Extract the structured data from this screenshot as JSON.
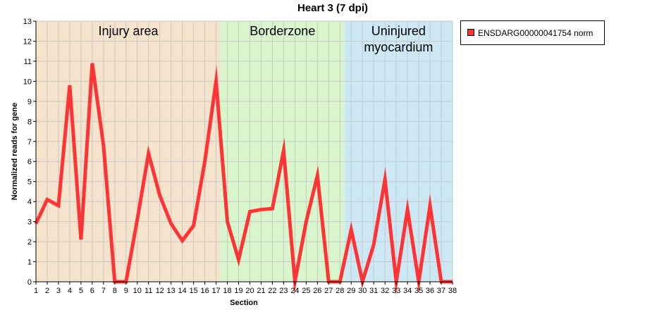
{
  "chart_data": {
    "type": "line",
    "title": "Heart 3 (7 dpi)",
    "xlabel": "Section",
    "ylabel": "Normalized reads for gene",
    "xlim": [
      1,
      38
    ],
    "ylim": [
      0,
      13
    ],
    "x_ticks": [
      1,
      2,
      3,
      4,
      5,
      6,
      7,
      8,
      9,
      10,
      11,
      12,
      13,
      14,
      15,
      16,
      17,
      18,
      19,
      20,
      21,
      22,
      23,
      24,
      25,
      26,
      27,
      28,
      29,
      30,
      31,
      32,
      33,
      34,
      35,
      36,
      37,
      38
    ],
    "y_ticks": [
      0,
      1,
      2,
      3,
      4,
      5,
      6,
      7,
      8,
      9,
      10,
      11,
      12,
      13
    ],
    "grid": true,
    "legend_position": "right",
    "regions": [
      {
        "label_lines": [
          "Injury area"
        ],
        "from": 1,
        "to": 17.4,
        "color": "#f5e3cc"
      },
      {
        "label_lines": [
          "Borderzone"
        ],
        "from": 17.4,
        "to": 28.4,
        "color": "#d9f5cc"
      },
      {
        "label_lines": [
          "Uninjured",
          "myocardium"
        ],
        "from": 28.4,
        "to": 38,
        "color": "#cce8f5"
      }
    ],
    "series": [
      {
        "name": "ENSDARG00000041754 norm",
        "color": "#ff3333",
        "x": [
          1,
          2,
          3,
          4,
          5,
          6,
          7,
          8,
          9,
          10,
          11,
          12,
          13,
          14,
          15,
          16,
          17,
          18,
          19,
          20,
          21,
          22,
          23,
          24,
          25,
          26,
          27,
          28,
          29,
          30,
          31,
          32,
          33,
          34,
          35,
          36,
          37,
          38
        ],
        "values": [
          2.9,
          4.1,
          3.8,
          9.8,
          2.1,
          10.9,
          6.8,
          0,
          0,
          3.1,
          6.4,
          4.3,
          2.9,
          2.05,
          2.8,
          6.0,
          10.0,
          3.0,
          1.1,
          3.5,
          3.6,
          3.65,
          6.55,
          0,
          3.0,
          5.3,
          0,
          0,
          2.6,
          0,
          1.85,
          5.1,
          0,
          3.6,
          0,
          3.8,
          0,
          0
        ]
      }
    ]
  }
}
